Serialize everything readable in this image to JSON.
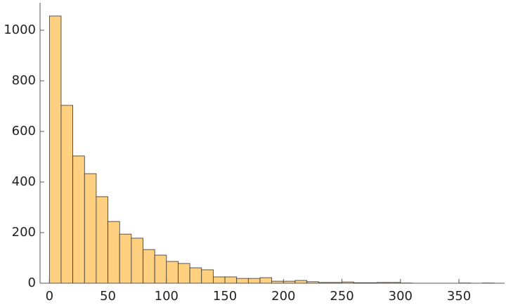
{
  "chart_data": {
    "type": "histogram",
    "bins": [
      0,
      10,
      20,
      30,
      40,
      50,
      60,
      70,
      80,
      90,
      100,
      110,
      120,
      130,
      140,
      150,
      160,
      170,
      180,
      190,
      200,
      210,
      220,
      230,
      240,
      250,
      260,
      270,
      280,
      290,
      300,
      310,
      320,
      330,
      340,
      350,
      360,
      370,
      380
    ],
    "values": [
      1056,
      703,
      503,
      433,
      342,
      244,
      194,
      178,
      133,
      111,
      86,
      78,
      61,
      53,
      25,
      25,
      19,
      19,
      22,
      8,
      8,
      11,
      6,
      3,
      3,
      5,
      2,
      2,
      3,
      3,
      1,
      0,
      0,
      0,
      0,
      1,
      0,
      1
    ],
    "color": "#fed080",
    "xlim": [
      -8,
      389
    ],
    "ylim": [
      0,
      1100
    ],
    "xticks": [
      0,
      50,
      100,
      150,
      200,
      250,
      300,
      350
    ],
    "yticks": [
      0,
      200,
      400,
      600,
      800,
      1000
    ],
    "grid": false
  }
}
